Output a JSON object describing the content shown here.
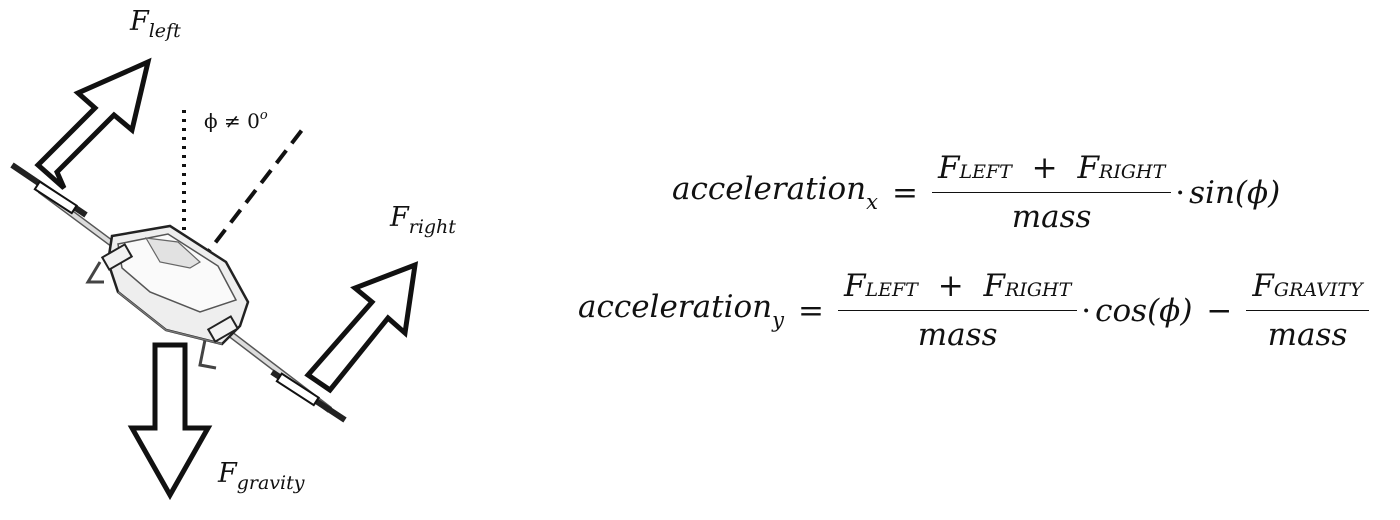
{
  "diagram": {
    "forces": {
      "left": {
        "base": "F",
        "sub": "left"
      },
      "right": {
        "base": "F",
        "sub": "right"
      },
      "gravity": {
        "base": "F",
        "sub": "gravity"
      }
    },
    "angle_label": {
      "text": "ϕ ≠ 0",
      "sup": "o"
    }
  },
  "equations": {
    "x": {
      "lhs": "acceleration",
      "lhs_sub": "x",
      "equals": "=",
      "num_a": "F",
      "num_a_sub": "LEFT",
      "plus": "+",
      "num_b": "F",
      "num_b_sub": "RIGHT",
      "den": "mass",
      "dot": "·",
      "trig": "sin(ϕ)"
    },
    "y": {
      "lhs": "acceleration",
      "lhs_sub": "y",
      "equals": "=",
      "num_a": "F",
      "num_a_sub": "LEFT",
      "plus": "+",
      "num_b": "F",
      "num_b_sub": "RIGHT",
      "den": "mass",
      "dot": "·",
      "trig": "cos(ϕ)",
      "minus": "−",
      "g_num": "F",
      "g_num_sub": "GRAVITY",
      "g_den": "mass"
    }
  }
}
